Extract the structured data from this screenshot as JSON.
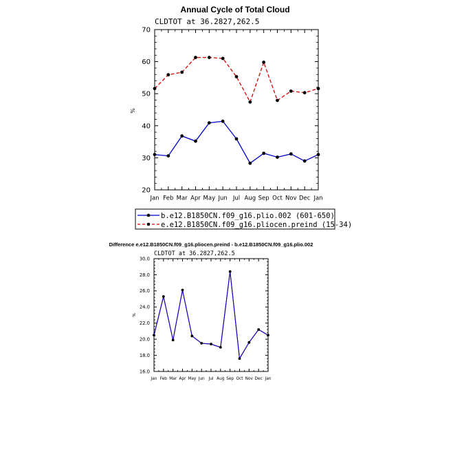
{
  "chart_data": [
    {
      "type": "line",
      "title": "Annual Cycle of Total Cloud",
      "subtitle": "CLDTOT at 36.2827,262.5",
      "xlabel": "",
      "ylabel": "%",
      "categories": [
        "Jan",
        "Feb",
        "Mar",
        "Apr",
        "May",
        "Jun",
        "Jul",
        "Aug",
        "Sep",
        "Oct",
        "Nov",
        "Dec",
        "Jan"
      ],
      "ylim": [
        20,
        70
      ],
      "yticks": [
        20,
        30,
        40,
        50,
        60,
        70
      ],
      "ytick_labels": [
        "20",
        "30",
        "40",
        "50",
        "60",
        "70"
      ],
      "grid": false,
      "legend_position": "below",
      "series": [
        {
          "name": "b.e12.B1850CN.f09_g16.plio.002 (601-650)",
          "color": "#0000cc",
          "dash": "solid",
          "values": [
            31.0,
            30.6,
            36.8,
            35.2,
            40.9,
            41.4,
            35.9,
            28.3,
            31.4,
            30.2,
            31.2,
            29.0,
            31.0
          ]
        },
        {
          "name": "e.e12.B1850CN.f09_g16.pliocen.preind (15-34)",
          "color": "#dd0000",
          "dash": "dashed",
          "values": [
            51.6,
            55.9,
            56.7,
            61.3,
            61.3,
            61.0,
            55.3,
            47.4,
            59.8,
            47.9,
            50.8,
            50.3,
            51.6
          ]
        }
      ]
    },
    {
      "type": "line",
      "title": "Difference e.e12.B1850CN.f09_g16.pliocen.preind - b.e12.B1850CN.f09_g16.plio.002",
      "subtitle": "CLDTOT at 36.2827,262.5",
      "xlabel": "",
      "ylabel": "%",
      "categories": [
        "Jan",
        "Feb",
        "Mar",
        "Apr",
        "May",
        "Jun",
        "Jul",
        "Aug",
        "Sep",
        "Oct",
        "Nov",
        "Dec",
        "Jan"
      ],
      "ylim": [
        16,
        30
      ],
      "yticks": [
        16,
        18,
        20,
        22,
        24,
        26,
        28,
        30
      ],
      "ytick_labels": [
        "16.0",
        "18.0",
        "20.0",
        "22.0",
        "24.0",
        "26.0",
        "28.0",
        "30.0"
      ],
      "grid": false,
      "series": [
        {
          "color": "#0000cc",
          "overlay_color": "#dd0000",
          "dash": "solid",
          "values": [
            20.5,
            25.3,
            19.9,
            26.1,
            20.4,
            19.5,
            19.4,
            19.0,
            28.4,
            17.6,
            19.6,
            21.2,
            20.5
          ]
        }
      ]
    }
  ]
}
